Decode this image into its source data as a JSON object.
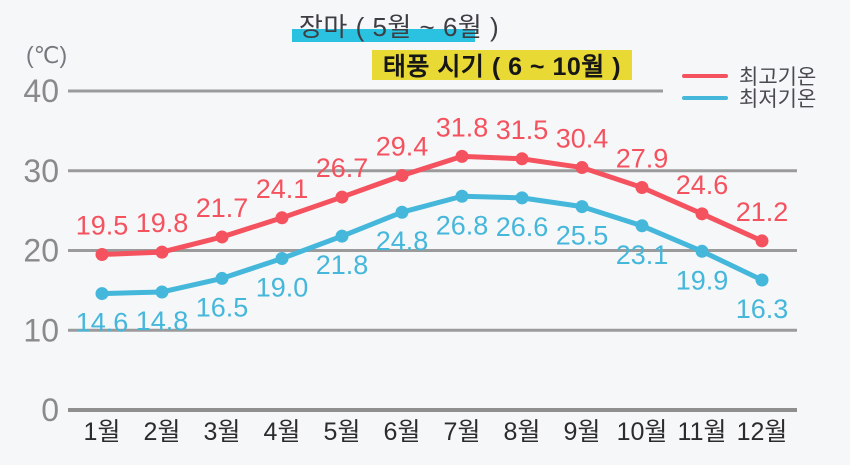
{
  "colors": {
    "background": "#f6f7f9",
    "grid": "#9b9b9b",
    "axis_line": "#8f8f8f",
    "y_tick_text": "#8a8a8a",
    "x_tick_text": "#2c2c2c",
    "legend_text": "#4a4a50",
    "max_series": "#f4525e",
    "min_series": "#45b7db",
    "rainy_highlight": "#2ac2e0",
    "typhoon_highlight": "#e8d934"
  },
  "chart_data": {
    "type": "line",
    "title": "",
    "xlabel": "",
    "ylabel": "(℃)",
    "categories": [
      "1월",
      "2월",
      "3월",
      "4월",
      "5월",
      "6월",
      "7월",
      "8월",
      "9월",
      "10월",
      "11월",
      "12월"
    ],
    "series": [
      {
        "name": "최고기온",
        "color": "#f4525e",
        "values": [
          19.5,
          19.8,
          21.7,
          24.1,
          26.7,
          29.4,
          31.8,
          31.5,
          30.4,
          27.9,
          24.6,
          21.2
        ]
      },
      {
        "name": "최저기온",
        "color": "#45b7db",
        "values": [
          14.6,
          14.8,
          16.5,
          19.0,
          21.8,
          24.8,
          26.8,
          26.6,
          25.5,
          23.1,
          19.9,
          16.3
        ]
      }
    ],
    "yticks": [
      0,
      10,
      20,
      30,
      40
    ],
    "ylim": [
      0,
      45
    ],
    "grid": true,
    "legend_position": "top-right",
    "data_labels": true,
    "annotations": [
      {
        "text": "장마 ( 5월 ~ 6월 )",
        "style": "cyan-underline",
        "color": "#2ac2e0"
      },
      {
        "text": "태풍 시기 ( 6 ~ 10월 )",
        "style": "yellow-box",
        "color": "#e8d934"
      }
    ]
  }
}
